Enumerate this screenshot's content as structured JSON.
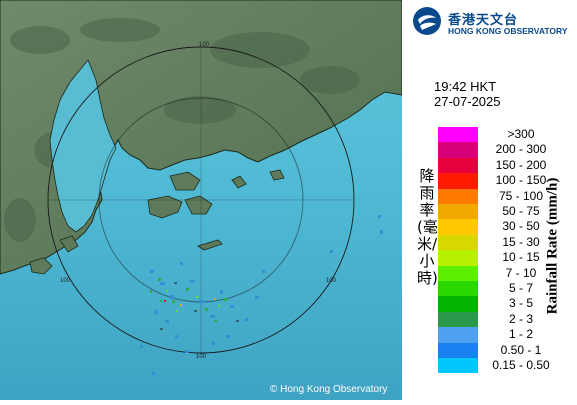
{
  "header": {
    "org_name_cn": "香港天文台",
    "org_name_en": "HONG KONG OBSERVATORY",
    "logo_icon": "hko-logo-icon"
  },
  "timestamp": {
    "time": "19:42 HKT",
    "date": "27-07-2025"
  },
  "map": {
    "range_ring_labels": [
      "100",
      "100",
      "100",
      "100"
    ],
    "copyright": "© Hong Kong Observatory"
  },
  "legend": {
    "title_cn": "降雨率(毫米/小時)",
    "title_en": "Rainfall Rate (mm/h)",
    "items": [
      {
        "label": ">300",
        "color": "#ff00ff"
      },
      {
        "label": "200 - 300",
        "color": "#d8007a"
      },
      {
        "label": "150 - 200",
        "color": "#e8003c"
      },
      {
        "label": "100 - 150",
        "color": "#ff1a00"
      },
      {
        "label": "75 - 100",
        "color": "#ff7a00"
      },
      {
        "label": "50 - 75",
        "color": "#f0a800"
      },
      {
        "label": "30 - 50",
        "color": "#ffc800"
      },
      {
        "label": "15 - 30",
        "color": "#d8d800"
      },
      {
        "label": "10 - 15",
        "color": "#b8f000"
      },
      {
        "label": "7 - 10",
        "color": "#5af000"
      },
      {
        "label": "5 - 7",
        "color": "#28d800"
      },
      {
        "label": "3 - 5",
        "color": "#00b400"
      },
      {
        "label": "2 - 3",
        "color": "#2a9a4a"
      },
      {
        "label": "1 - 2",
        "color": "#50a0f0"
      },
      {
        "label": "0.50 - 1",
        "color": "#1a80f0"
      },
      {
        "label": "0.15 - 0.50",
        "color": "#00c8ff"
      }
    ]
  }
}
